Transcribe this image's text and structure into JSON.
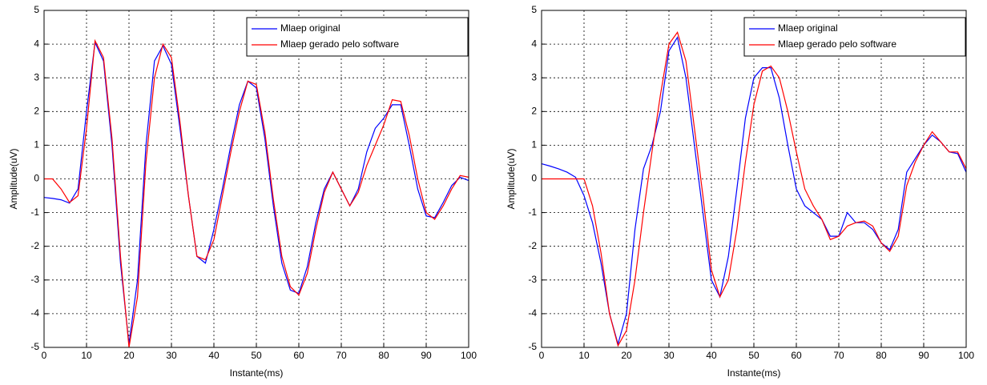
{
  "chart_data": [
    {
      "type": "line",
      "xlabel": "Instante(ms)",
      "ylabel": "Amplitude(uV)",
      "xlim": [
        0,
        100
      ],
      "ylim": [
        -5,
        5
      ],
      "xticks": [
        0,
        10,
        20,
        30,
        40,
        50,
        60,
        70,
        80,
        90,
        100
      ],
      "yticks": [
        -5,
        -4,
        -3,
        -2,
        -1,
        0,
        1,
        2,
        3,
        4,
        5
      ],
      "grid": true,
      "legend": "upper right",
      "x": [
        0,
        2,
        4,
        6,
        8,
        10,
        12,
        14,
        16,
        18,
        20,
        22,
        24,
        26,
        28,
        30,
        32,
        34,
        36,
        38,
        40,
        42,
        44,
        46,
        48,
        50,
        52,
        54,
        56,
        58,
        60,
        62,
        64,
        66,
        68,
        70,
        72,
        74,
        76,
        78,
        80,
        82,
        84,
        86,
        88,
        90,
        92,
        94,
        96,
        98,
        100
      ],
      "series": [
        {
          "name": "Mlaep original",
          "color": "#0000ff",
          "values": [
            -0.55,
            -0.58,
            -0.62,
            -0.72,
            -0.3,
            2.0,
            4.05,
            3.5,
            1.0,
            -2.5,
            -4.9,
            -3.0,
            1.0,
            3.5,
            3.95,
            3.4,
            1.5,
            -0.5,
            -2.3,
            -2.5,
            -1.5,
            -0.3,
            1.0,
            2.2,
            2.9,
            2.7,
            1.2,
            -0.8,
            -2.5,
            -3.3,
            -3.4,
            -2.6,
            -1.3,
            -0.3,
            0.2,
            -0.3,
            -0.8,
            -0.3,
            0.8,
            1.5,
            1.8,
            2.2,
            2.2,
            1.0,
            -0.3,
            -1.1,
            -1.15,
            -0.7,
            -0.2,
            0.05,
            -0.05
          ]
        },
        {
          "name": "Mlaep gerado pelo software",
          "color": "#ff0000",
          "values": [
            0,
            0,
            -0.3,
            -0.7,
            -0.5,
            1.5,
            4.1,
            3.6,
            1.2,
            -2.3,
            -5.0,
            -3.5,
            0.5,
            3.0,
            4.0,
            3.6,
            1.7,
            -0.5,
            -2.3,
            -2.4,
            -1.8,
            -0.5,
            0.8,
            2.0,
            2.9,
            2.8,
            1.4,
            -0.6,
            -2.3,
            -3.2,
            -3.45,
            -2.8,
            -1.5,
            -0.4,
            0.2,
            -0.3,
            -0.8,
            -0.4,
            0.4,
            1.0,
            1.6,
            2.35,
            2.3,
            1.3,
            0.0,
            -1.0,
            -1.2,
            -0.8,
            -0.3,
            0.1,
            0.05
          ]
        }
      ]
    },
    {
      "type": "line",
      "xlabel": "Instante(ms)",
      "ylabel": "Amplitude(uV)",
      "xlim": [
        0,
        100
      ],
      "ylim": [
        -5,
        5
      ],
      "xticks": [
        0,
        10,
        20,
        30,
        40,
        50,
        60,
        70,
        80,
        90,
        100
      ],
      "yticks": [
        -5,
        -4,
        -3,
        -2,
        -1,
        0,
        1,
        2,
        3,
        4,
        5
      ],
      "grid": true,
      "legend": "upper right",
      "x": [
        0,
        2,
        4,
        6,
        8,
        10,
        12,
        14,
        16,
        18,
        20,
        22,
        24,
        26,
        28,
        30,
        32,
        34,
        36,
        38,
        40,
        42,
        44,
        46,
        48,
        50,
        52,
        54,
        56,
        58,
        60,
        62,
        64,
        66,
        68,
        70,
        72,
        74,
        76,
        78,
        80,
        82,
        84,
        86,
        88,
        90,
        92,
        94,
        96,
        98,
        100
      ],
      "series": [
        {
          "name": "Mlaep original",
          "color": "#0000ff",
          "values": [
            0.45,
            0.38,
            0.3,
            0.2,
            0.05,
            -0.5,
            -1.3,
            -2.5,
            -4.0,
            -4.9,
            -4.0,
            -1.5,
            0.3,
            1.0,
            2.0,
            3.8,
            4.2,
            3.0,
            1.0,
            -1.0,
            -3.0,
            -3.5,
            -2.3,
            -0.3,
            1.8,
            3.0,
            3.3,
            3.3,
            2.4,
            1.0,
            -0.3,
            -0.8,
            -1.0,
            -1.2,
            -1.7,
            -1.7,
            -1.0,
            -1.3,
            -1.3,
            -1.5,
            -1.9,
            -2.1,
            -1.5,
            0.2,
            0.6,
            1.0,
            1.3,
            1.1,
            0.8,
            0.75,
            0.2
          ]
        },
        {
          "name": "Mlaep gerado pelo software",
          "color": "#ff0000",
          "values": [
            0,
            0,
            0,
            0,
            0,
            0,
            -0.8,
            -2.2,
            -4.0,
            -4.95,
            -4.5,
            -3.0,
            -1.0,
            0.8,
            2.5,
            4.0,
            4.35,
            3.5,
            1.5,
            -0.5,
            -2.7,
            -3.5,
            -3.0,
            -1.5,
            0.5,
            2.2,
            3.2,
            3.35,
            3.0,
            2.0,
            0.8,
            -0.3,
            -0.8,
            -1.2,
            -1.8,
            -1.7,
            -1.4,
            -1.3,
            -1.25,
            -1.4,
            -1.9,
            -2.15,
            -1.7,
            -0.2,
            0.5,
            1.0,
            1.4,
            1.1,
            0.8,
            0.8,
            0.3
          ]
        }
      ]
    }
  ]
}
